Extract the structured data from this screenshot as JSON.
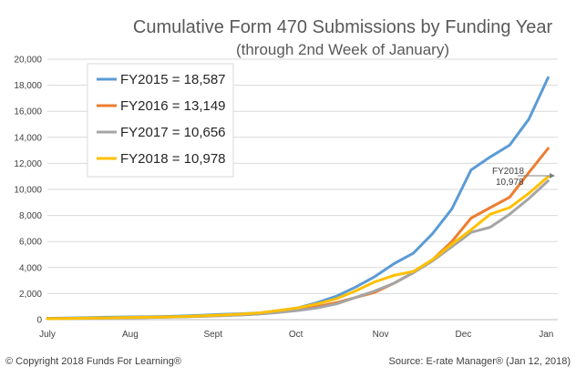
{
  "chart_data": {
    "type": "line",
    "title": "Cumulative Form 470 Submissions by Funding Year",
    "subtitle": "(through 2nd Week of January)",
    "xlabel": "",
    "ylabel": "",
    "ylim": [
      0,
      20000
    ],
    "yticks": [
      0,
      2000,
      4000,
      6000,
      8000,
      10000,
      12000,
      14000,
      16000,
      18000,
      20000
    ],
    "ytick_labels": [
      "0",
      "2,000",
      "4,000",
      "6,000",
      "8,000",
      "10,000",
      "12,000",
      "14,000",
      "16,000",
      "18,000",
      "20,000"
    ],
    "x_tick_labels": [
      "July",
      "Aug",
      "Sept",
      "Oct",
      "Nov",
      "Dec",
      "Jan"
    ],
    "x_tick_positions": [
      0,
      4.3,
      8.6,
      12.9,
      17.3,
      21.6,
      25.9
    ],
    "xlim": [
      0,
      26.5
    ],
    "grid": true,
    "legend_position": "top-left",
    "series": [
      {
        "name": "FY2015 = 18,587",
        "color": "#5b9bd5",
        "x": [
          0,
          1,
          2,
          3,
          4,
          5,
          6,
          7,
          8,
          9,
          10,
          11,
          12,
          13,
          14,
          15,
          16,
          17,
          18,
          19,
          20,
          21,
          22,
          23,
          24,
          25,
          26
        ],
        "values": [
          100,
          120,
          150,
          180,
          200,
          220,
          240,
          280,
          330,
          400,
          450,
          520,
          700,
          900,
          1300,
          1800,
          2500,
          3300,
          4300,
          5100,
          6600,
          8500,
          11500,
          12500,
          13400,
          15400,
          18587
        ]
      },
      {
        "name": "FY2016 = 13,149",
        "color": "#ed7d31",
        "x": [
          0,
          1,
          2,
          3,
          4,
          5,
          6,
          7,
          8,
          9,
          10,
          11,
          12,
          13,
          14,
          15,
          16,
          17,
          18,
          19,
          20,
          21,
          22,
          23,
          24,
          25,
          26
        ],
        "values": [
          80,
          90,
          110,
          130,
          150,
          170,
          190,
          220,
          260,
          310,
          370,
          450,
          600,
          800,
          1000,
          1300,
          1700,
          2100,
          2800,
          3600,
          4600,
          6000,
          7800,
          8600,
          9400,
          11300,
          13149
        ]
      },
      {
        "name": "FY2017 = 10,656",
        "color": "#a5a5a5",
        "x": [
          0,
          1,
          2,
          3,
          4,
          5,
          6,
          7,
          8,
          9,
          10,
          11,
          12,
          13,
          14,
          15,
          16,
          17,
          18,
          19,
          20,
          21,
          22,
          23,
          24,
          25,
          26
        ],
        "values": [
          60,
          80,
          100,
          120,
          140,
          160,
          180,
          210,
          250,
          300,
          350,
          430,
          550,
          700,
          900,
          1200,
          1700,
          2200,
          2800,
          3600,
          4500,
          5600,
          6700,
          7100,
          8100,
          9300,
          10656
        ]
      },
      {
        "name": "FY2018 = 10,978",
        "color": "#ffc000",
        "x": [
          0,
          1,
          2,
          3,
          4,
          5,
          6,
          7,
          8,
          9,
          10,
          11,
          12,
          13,
          14,
          15,
          16,
          17,
          18,
          19,
          20,
          21,
          22,
          23,
          24,
          25,
          26
        ],
        "values": [
          70,
          90,
          110,
          130,
          160,
          180,
          200,
          240,
          290,
          350,
          420,
          520,
          700,
          900,
          1200,
          1600,
          2200,
          2900,
          3400,
          3700,
          4600,
          5800,
          6900,
          8100,
          8600,
          9700,
          10978
        ]
      }
    ],
    "annotation": {
      "line1": "FY2018",
      "line2": "10,978",
      "x": 26,
      "y": 10978
    }
  },
  "footer": {
    "copyright": "© Copyright 2018 Funds For Learning®",
    "source": "Source: E-rate Manager® (Jan 12, 2018)"
  }
}
